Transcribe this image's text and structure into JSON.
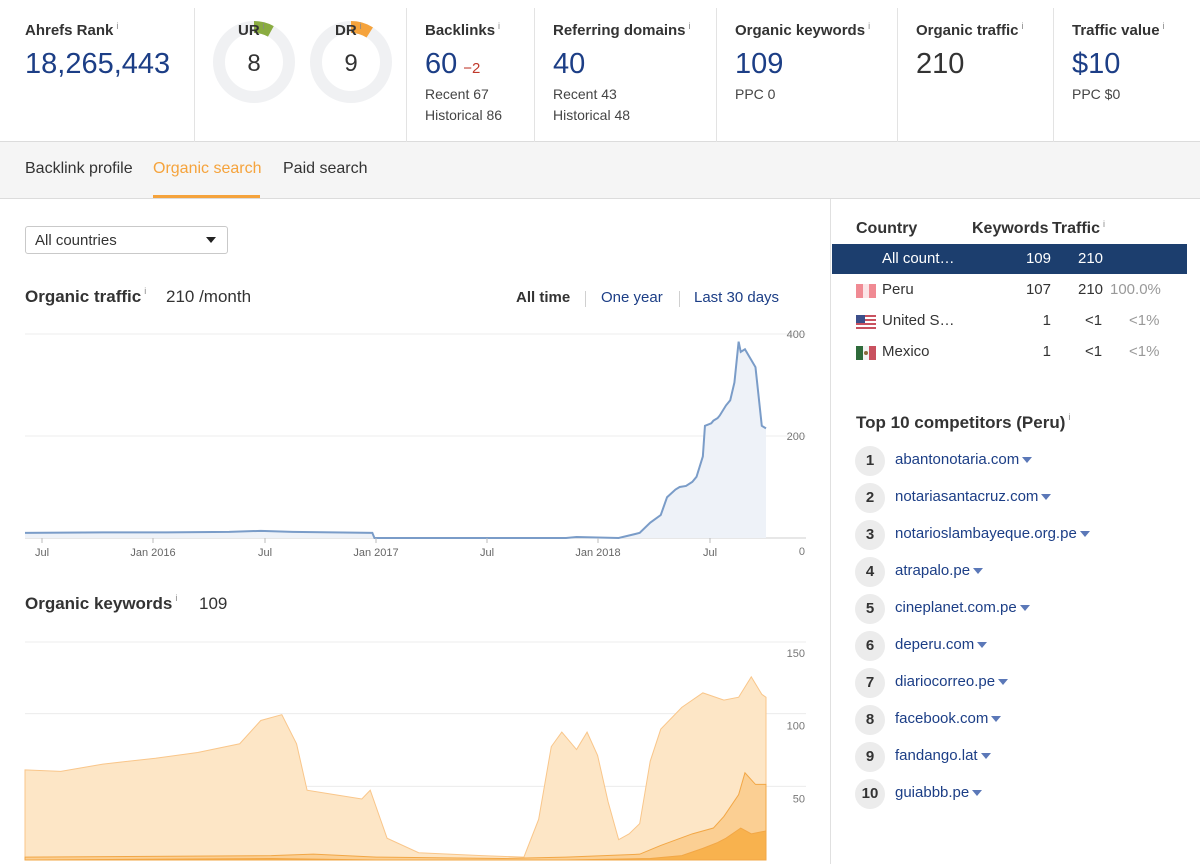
{
  "metrics": {
    "ahrefs_rank": {
      "label": "Ahrefs Rank",
      "value": "18,265,443"
    },
    "ur": {
      "label": "UR",
      "value": "8",
      "level": 8,
      "color": "#8aac41"
    },
    "dr": {
      "label": "DR",
      "value": "9",
      "level": 9,
      "color": "#f5a33c"
    },
    "backlinks": {
      "label": "Backlinks",
      "value": "60",
      "delta": "−2",
      "recent": "Recent 67",
      "historical": "Historical 86"
    },
    "referring_domains": {
      "label": "Referring domains",
      "value": "40",
      "recent": "Recent 43",
      "historical": "Historical 48"
    },
    "organic_keywords": {
      "label": "Organic keywords",
      "value": "109",
      "ppc": "PPC 0"
    },
    "organic_traffic": {
      "label": "Organic traffic",
      "value": "210"
    },
    "traffic_value": {
      "label": "Traffic value",
      "value": "$10",
      "ppc": "PPC $0"
    },
    "info_mark": "i"
  },
  "tabs": [
    {
      "label": "Backlink profile",
      "active": false
    },
    {
      "label": "Organic search",
      "active": true
    },
    {
      "label": "Paid search",
      "active": false
    }
  ],
  "filter": {
    "selected": "All countries"
  },
  "traffic_section": {
    "title": "Organic traffic",
    "value": "210 /month",
    "ranges": [
      "All time",
      "One year",
      "Last 30 days"
    ],
    "active_range": "All time"
  },
  "keywords_section": {
    "title": "Organic keywords",
    "value": "109"
  },
  "chart_data": [
    {
      "type": "area",
      "x_ticks": [
        "Jul",
        "Jan 2016",
        "Jul",
        "Jan 2017",
        "Jul",
        "Jan 2018",
        "Jul"
      ],
      "y_ticks": [
        "400",
        "200",
        "0"
      ],
      "ylim": [
        0,
        400
      ],
      "grid": true,
      "color": "#7a9cc8",
      "series": [
        {
          "x": [
            2015.33,
            2015.7,
            2016.0,
            2016.3,
            2016.45,
            2016.6,
            2016.98,
            2016.99,
            2017.5,
            2017.9,
            2017.95,
            2018.15,
            2018.25,
            2018.3,
            2018.35,
            2018.38,
            2018.42,
            2018.44,
            2018.47,
            2018.5,
            2018.52,
            2018.55,
            2018.56,
            2018.59,
            2018.6,
            2018.62,
            2018.63,
            2018.66,
            2018.68,
            2018.7,
            2018.72,
            2018.73,
            2018.75,
            2018.8,
            2018.83,
            2018.85
          ],
          "y": [
            10,
            11,
            11,
            12,
            14,
            12,
            10,
            0,
            0,
            0,
            2,
            0,
            10,
            30,
            45,
            80,
            95,
            100,
            102,
            110,
            120,
            160,
            220,
            225,
            230,
            235,
            240,
            260,
            270,
            305,
            385,
            365,
            370,
            335,
            220,
            215
          ]
        }
      ]
    },
    {
      "type": "area",
      "stacked": false,
      "y_ticks": [
        "150",
        "100",
        "50"
      ],
      "ylim": [
        0,
        150
      ],
      "grid": true,
      "series": [
        {
          "color": "#fde6c6",
          "x": [
            2015.33,
            2015.5,
            2015.7,
            2015.95,
            2016.15,
            2016.35,
            2016.45,
            2016.55,
            2016.62,
            2016.67,
            2016.8,
            2016.93,
            2016.97,
            2017.05,
            2017.2,
            2017.5,
            2017.7,
            2017.77,
            2017.83,
            2017.88,
            2017.95,
            2018.0,
            2018.05,
            2018.1,
            2018.15,
            2018.2,
            2018.25,
            2018.3,
            2018.35,
            2018.45,
            2018.55,
            2018.65,
            2018.72,
            2018.78,
            2018.83,
            2018.85
          ],
          "y": [
            62,
            61,
            66,
            70,
            74,
            80,
            96,
            100,
            80,
            48,
            45,
            42,
            48,
            15,
            5,
            3,
            2,
            28,
            78,
            88,
            76,
            88,
            72,
            40,
            14,
            18,
            25,
            68,
            90,
            105,
            115,
            110,
            112,
            126,
            114,
            112
          ]
        },
        {
          "color": "#fbcf93",
          "x": [
            2015.33,
            2016.5,
            2016.7,
            2017.0,
            2017.6,
            2017.9,
            2018.25,
            2018.35,
            2018.5,
            2018.6,
            2018.65,
            2018.72,
            2018.75,
            2018.8,
            2018.85
          ],
          "y": [
            2,
            3,
            4,
            2,
            1,
            2,
            4,
            10,
            18,
            22,
            30,
            45,
            60,
            52,
            52
          ]
        },
        {
          "color": "#f8b24e",
          "x": [
            2015.33,
            2016.5,
            2017.0,
            2017.9,
            2018.3,
            2018.45,
            2018.55,
            2018.62,
            2018.66,
            2018.7,
            2018.73,
            2018.78,
            2018.85
          ],
          "y": [
            0,
            1,
            0,
            0,
            1,
            3,
            8,
            12,
            15,
            19,
            22,
            18,
            20
          ]
        }
      ]
    }
  ],
  "country_table": {
    "headers": [
      "Country",
      "Keywords",
      "Traffic"
    ],
    "rows": [
      {
        "name": "All count…",
        "keywords": "109",
        "traffic": "210",
        "pct": "",
        "flag": ""
      },
      {
        "name": "Peru",
        "keywords": "107",
        "traffic": "210",
        "pct": "100.0%",
        "flag": "peru-flag-icon"
      },
      {
        "name": "United S…",
        "keywords": "1",
        "traffic": "<1",
        "pct": "<1%",
        "flag": "usa-flag-icon"
      },
      {
        "name": "Mexico",
        "keywords": "1",
        "traffic": "<1",
        "pct": "<1%",
        "flag": "mexico-flag-icon"
      }
    ]
  },
  "competitors": {
    "title": "Top 10 competitors (Peru)",
    "items": [
      {
        "rank": "1",
        "domain": "abantonotaria.com"
      },
      {
        "rank": "2",
        "domain": "notariasantacruz.com"
      },
      {
        "rank": "3",
        "domain": "notarioslambayeque.org.pe"
      },
      {
        "rank": "4",
        "domain": "atrapalo.pe"
      },
      {
        "rank": "5",
        "domain": "cineplanet.com.pe"
      },
      {
        "rank": "6",
        "domain": "deperu.com"
      },
      {
        "rank": "7",
        "domain": "diariocorreo.pe"
      },
      {
        "rank": "8",
        "domain": "facebook.com"
      },
      {
        "rank": "9",
        "domain": "fandango.lat"
      },
      {
        "rank": "10",
        "domain": "guiabbb.pe"
      }
    ]
  }
}
